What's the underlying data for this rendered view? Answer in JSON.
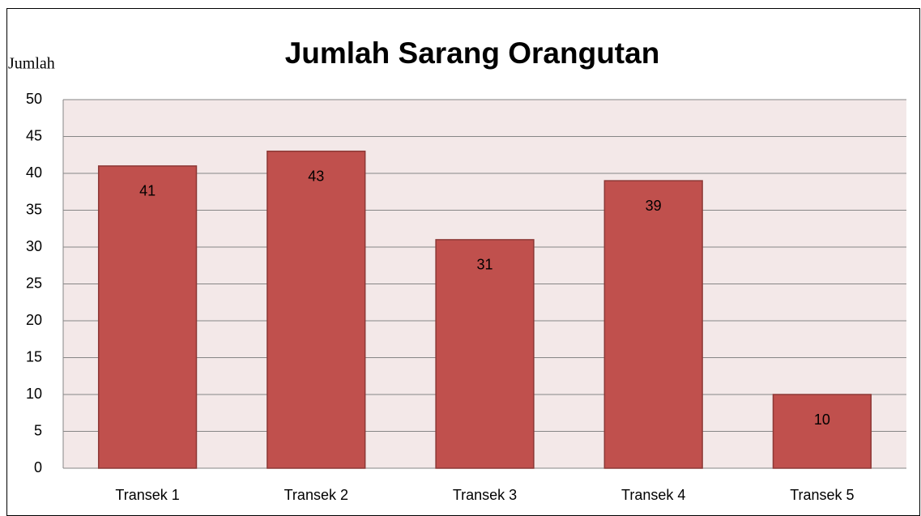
{
  "chart_data": {
    "type": "bar",
    "title": "Jumlah Sarang Orangutan",
    "y_label": "Jumlah",
    "categories": [
      "Transek 1",
      "Transek 2",
      "Transek 3",
      "Transek 4",
      "Transek 5"
    ],
    "values": [
      41,
      43,
      31,
      39,
      10
    ],
    "color": "#c0504d",
    "ylim": [
      0,
      50
    ],
    "yticks": [
      0,
      5,
      10,
      15,
      20,
      25,
      30,
      35,
      40,
      45,
      50
    ],
    "grid": true
  }
}
